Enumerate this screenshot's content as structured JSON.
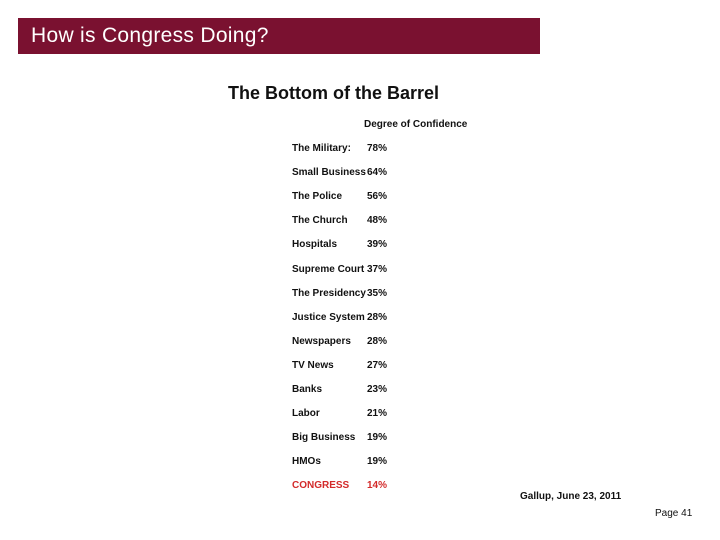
{
  "header": {
    "title": "How is Congress Doing?",
    "bar_color": "#7a1130"
  },
  "subtitle": "The Bottom of the Barrel",
  "column_header": "Degree of Confidence",
  "rows": [
    {
      "institution": "The Military:",
      "percent": "78%"
    },
    {
      "institution": "Small Business",
      "percent": "64%"
    },
    {
      "institution": "The Police",
      "percent": "56%"
    },
    {
      "institution": "The Church",
      "percent": "48%"
    },
    {
      "institution": "Hospitals",
      "percent": "39%"
    },
    {
      "institution": "Supreme Court",
      "percent": "37%"
    },
    {
      "institution": "The Presidency",
      "percent": "35%"
    },
    {
      "institution": "Justice System",
      "percent": "28%"
    },
    {
      "institution": "Newspapers",
      "percent": "28%"
    },
    {
      "institution": "TV News",
      "percent": "27%"
    },
    {
      "institution": "Banks",
      "percent": "23%"
    },
    {
      "institution": "Labor",
      "percent": "21%"
    },
    {
      "institution": "Big Business",
      "percent": "19%"
    },
    {
      "institution": "HMOs",
      "percent": "19%"
    },
    {
      "institution": "CONGRESS",
      "percent": "14%",
      "highlight": true
    }
  ],
  "highlight_color": "#d32a2a",
  "source": "Gallup, June 23, 2011",
  "page_number": "Page 41"
}
